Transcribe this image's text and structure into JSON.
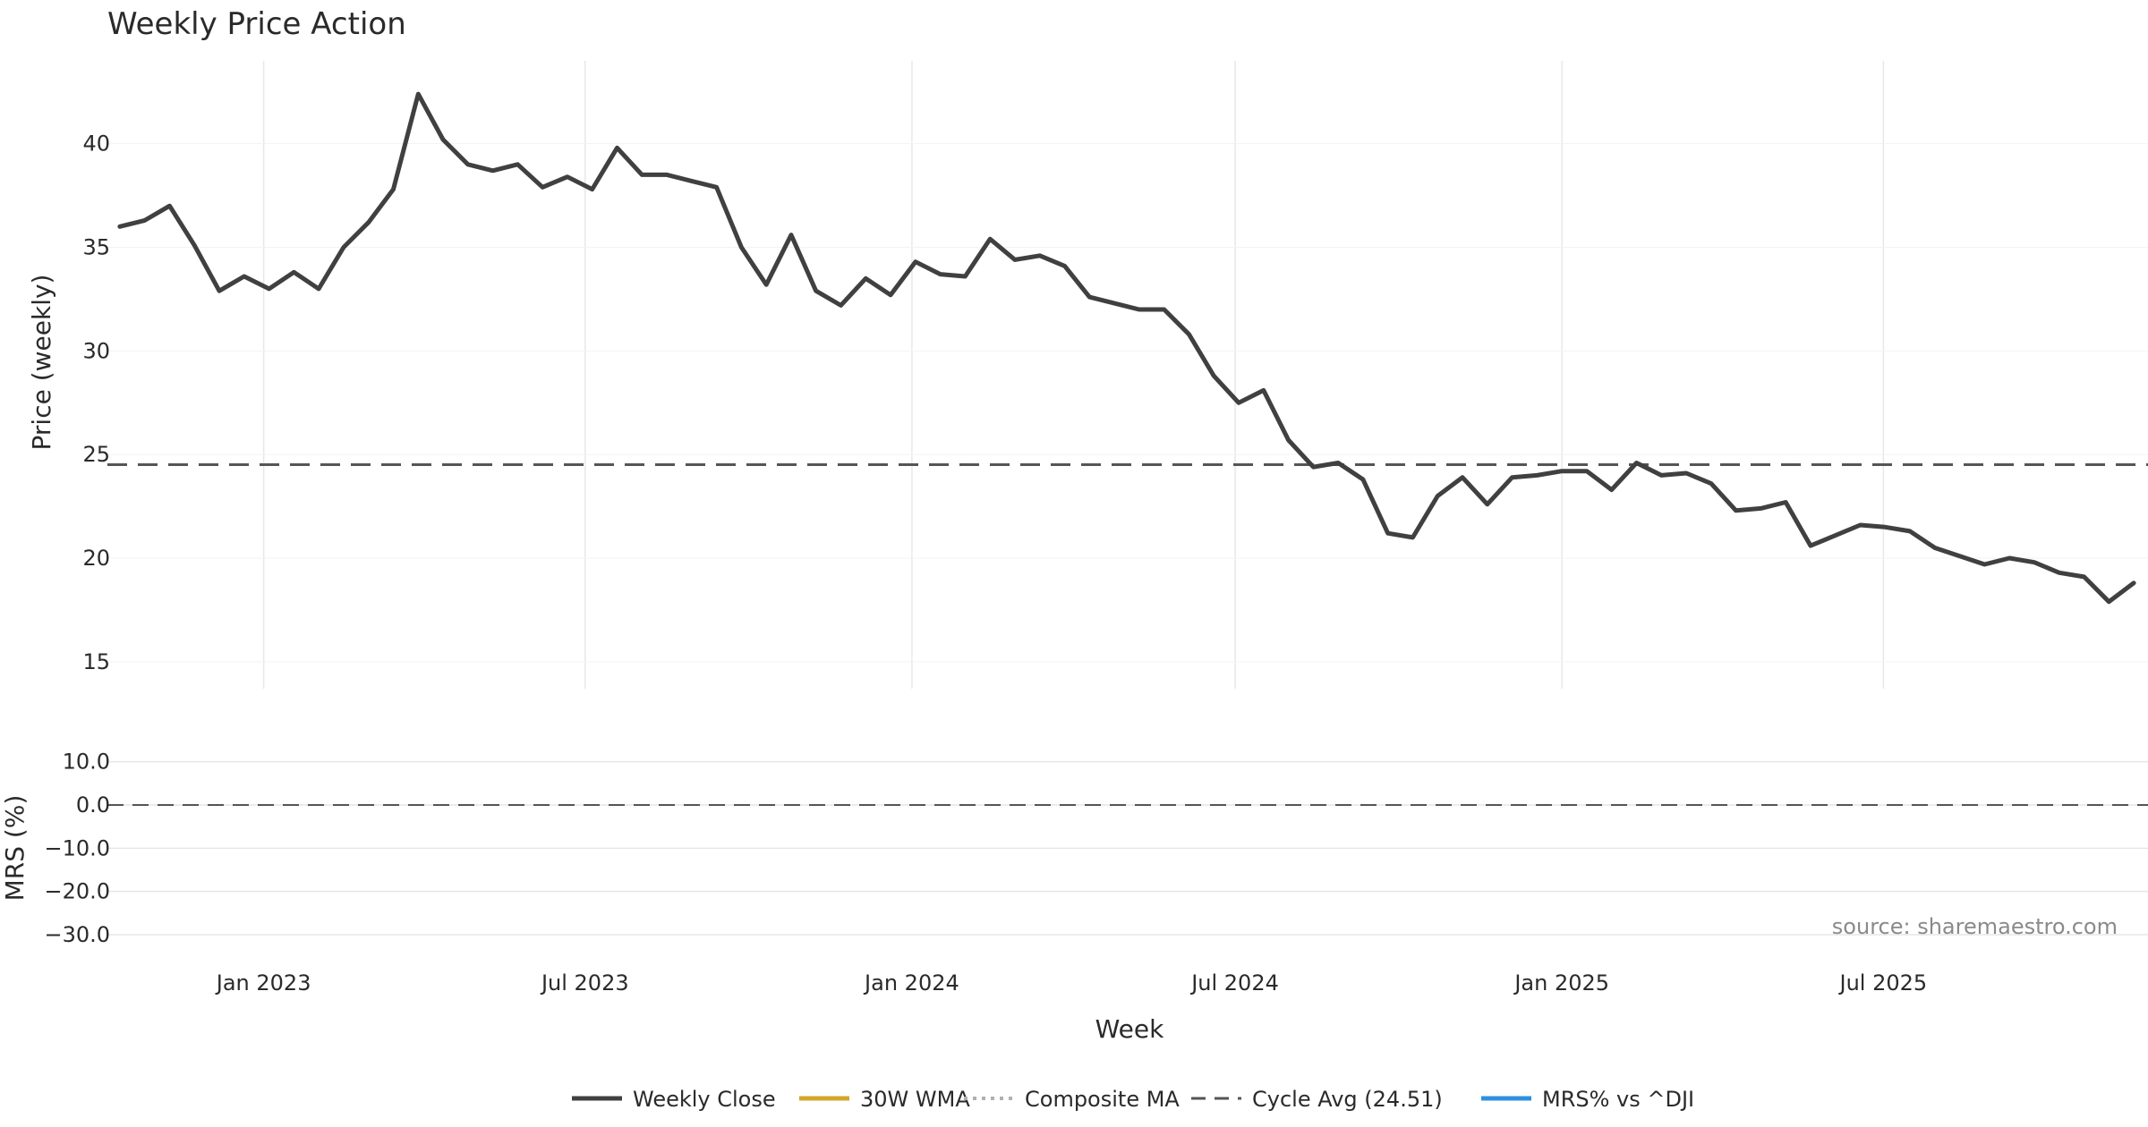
{
  "chart_data": {
    "type": "line",
    "title": "Weekly Price Action",
    "xlabel": "Week",
    "x_ticks": [
      {
        "label": "Jan 2023",
        "date": "2023-01-01"
      },
      {
        "label": "Jul 2023",
        "date": "2023-07-01"
      },
      {
        "label": "Jan 2024",
        "date": "2024-01-01"
      },
      {
        "label": "Jul 2024",
        "date": "2024-07-01"
      },
      {
        "label": "Jan 2025",
        "date": "2025-01-01"
      },
      {
        "label": "Jul 2025",
        "date": "2025-07-01"
      }
    ],
    "xlim": [
      "2022-10-05",
      "2025-11-27"
    ],
    "grid": true,
    "source": "source: sharemaestro.com",
    "legend_position": "bottom-center",
    "price_panel": {
      "ylabel": "Price (weekly)",
      "ylim": [
        13.7,
        44.0
      ],
      "yticks": [
        15,
        20,
        25,
        30,
        35,
        40
      ],
      "cycle_avg": 24.51,
      "series": [
        {
          "name": "Weekly Close",
          "color": "#404040",
          "style": "solid",
          "points": [
            [
              "2022-10-12",
              36.0
            ],
            [
              "2022-10-26",
              36.3
            ],
            [
              "2022-11-09",
              37.0
            ],
            [
              "2022-11-23",
              35.1
            ],
            [
              "2022-12-07",
              32.9
            ],
            [
              "2022-12-21",
              33.6
            ],
            [
              "2023-01-04",
              33.0
            ],
            [
              "2023-01-18",
              33.8
            ],
            [
              "2023-02-01",
              33.0
            ],
            [
              "2023-02-15",
              35.0
            ],
            [
              "2023-03-01",
              36.2
            ],
            [
              "2023-03-15",
              37.8
            ],
            [
              "2023-03-29",
              42.4
            ],
            [
              "2023-04-12",
              40.2
            ],
            [
              "2023-04-26",
              39.0
            ],
            [
              "2023-05-10",
              38.7
            ],
            [
              "2023-05-24",
              39.0
            ],
            [
              "2023-06-07",
              37.9
            ],
            [
              "2023-06-21",
              38.4
            ],
            [
              "2023-07-05",
              37.8
            ],
            [
              "2023-07-19",
              39.8
            ],
            [
              "2023-08-02",
              38.5
            ],
            [
              "2023-08-16",
              38.5
            ],
            [
              "2023-08-30",
              38.2
            ],
            [
              "2023-09-13",
              37.9
            ],
            [
              "2023-09-27",
              35.0
            ],
            [
              "2023-10-11",
              33.2
            ],
            [
              "2023-10-25",
              35.6
            ],
            [
              "2023-11-08",
              32.9
            ],
            [
              "2023-11-22",
              32.2
            ],
            [
              "2023-12-06",
              33.5
            ],
            [
              "2023-12-20",
              32.7
            ],
            [
              "2024-01-03",
              34.3
            ],
            [
              "2024-01-17",
              33.7
            ],
            [
              "2024-01-31",
              33.6
            ],
            [
              "2024-02-14",
              35.4
            ],
            [
              "2024-02-28",
              34.4
            ],
            [
              "2024-03-13",
              34.6
            ],
            [
              "2024-03-27",
              34.1
            ],
            [
              "2024-04-10",
              32.6
            ],
            [
              "2024-04-24",
              32.3
            ],
            [
              "2024-05-08",
              32.0
            ],
            [
              "2024-05-22",
              32.0
            ],
            [
              "2024-06-05",
              30.8
            ],
            [
              "2024-06-19",
              28.8
            ],
            [
              "2024-07-03",
              27.5
            ],
            [
              "2024-07-17",
              28.1
            ],
            [
              "2024-07-31",
              25.7
            ],
            [
              "2024-08-14",
              24.4
            ],
            [
              "2024-08-28",
              24.6
            ],
            [
              "2024-09-11",
              23.8
            ],
            [
              "2024-09-25",
              21.2
            ],
            [
              "2024-10-09",
              21.0
            ],
            [
              "2024-10-23",
              23.0
            ],
            [
              "2024-11-06",
              23.9
            ],
            [
              "2024-11-20",
              22.6
            ],
            [
              "2024-12-04",
              23.9
            ],
            [
              "2024-12-18",
              24.0
            ],
            [
              "2025-01-01",
              24.2
            ],
            [
              "2025-01-15",
              24.2
            ],
            [
              "2025-01-29",
              23.3
            ],
            [
              "2025-02-12",
              24.6
            ],
            [
              "2025-02-26",
              24.0
            ],
            [
              "2025-03-12",
              24.1
            ],
            [
              "2025-03-26",
              23.6
            ],
            [
              "2025-04-09",
              22.3
            ],
            [
              "2025-04-23",
              22.4
            ],
            [
              "2025-05-07",
              22.7
            ],
            [
              "2025-05-21",
              20.6
            ],
            [
              "2025-06-04",
              21.1
            ],
            [
              "2025-06-18",
              21.6
            ],
            [
              "2025-07-02",
              21.5
            ],
            [
              "2025-07-16",
              21.3
            ],
            [
              "2025-07-30",
              20.5
            ],
            [
              "2025-08-13",
              20.1
            ],
            [
              "2025-08-27",
              19.7
            ],
            [
              "2025-09-10",
              20.0
            ],
            [
              "2025-09-24",
              19.8
            ],
            [
              "2025-10-08",
              19.3
            ],
            [
              "2025-10-22",
              19.1
            ],
            [
              "2025-11-05",
              17.9
            ],
            [
              "2025-11-19",
              18.8
            ]
          ]
        }
      ]
    },
    "mrs_panel": {
      "ylabel": "MRS (%)",
      "ylim": [
        -36,
        12
      ],
      "yticks": [
        10.0,
        0.0,
        -10.0,
        -20.0,
        -30.0
      ],
      "ytick_labels": [
        "10.0",
        "0.0",
        "−10.0",
        "−20.0",
        "−30.0"
      ],
      "reference_zero": true
    },
    "legend": [
      {
        "label": "Weekly Close",
        "color": "#404040",
        "style": "solid"
      },
      {
        "label": "30W WMA",
        "color": "#d4a62a",
        "style": "solid"
      },
      {
        "label": "Composite MA",
        "color": "#b0b0b0",
        "style": "dotted"
      },
      {
        "label": "Cycle Avg (24.51)",
        "color": "#555555",
        "style": "dashed"
      },
      {
        "label": "MRS% vs ^DJI",
        "color": "#2f8fe0",
        "style": "solid"
      }
    ]
  }
}
